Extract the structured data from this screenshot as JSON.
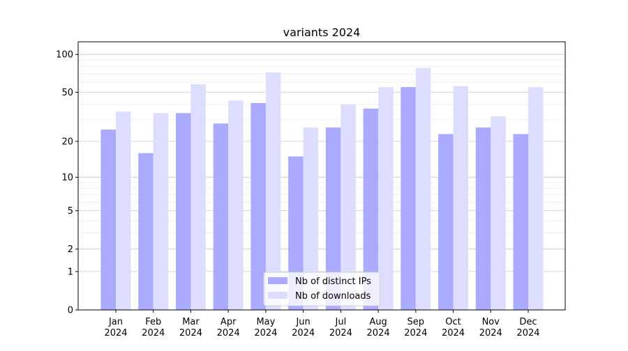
{
  "chart_data": {
    "type": "bar",
    "title": "variants 2024",
    "xlabel": "",
    "ylabel": "",
    "yscale": "log10(1+y)",
    "ylim": [
      0,
      126
    ],
    "yticks": [
      0,
      1,
      2,
      5,
      10,
      20,
      50,
      100
    ],
    "ytick_labels": [
      "0",
      "1",
      "2",
      "5",
      "10",
      "20",
      "50",
      "100"
    ],
    "minor_grid": [
      3,
      4,
      6,
      7,
      8,
      9,
      30,
      40,
      60,
      70,
      80,
      90
    ],
    "grid": true,
    "legend_position": "bottom-center",
    "categories": [
      [
        "Jan",
        "2024"
      ],
      [
        "Feb",
        "2024"
      ],
      [
        "Mar",
        "2024"
      ],
      [
        "Apr",
        "2024"
      ],
      [
        "May",
        "2024"
      ],
      [
        "Jun",
        "2024"
      ],
      [
        "Jul",
        "2024"
      ],
      [
        "Aug",
        "2024"
      ],
      [
        "Sep",
        "2024"
      ],
      [
        "Oct",
        "2024"
      ],
      [
        "Nov",
        "2024"
      ],
      [
        "Dec",
        "2024"
      ]
    ],
    "series": [
      {
        "name": "Nb of distinct IPs",
        "color": "#aaaaff",
        "values": [
          25,
          16,
          34,
          28,
          41,
          15,
          26,
          37,
          55,
          23,
          26,
          23
        ]
      },
      {
        "name": "Nb of downloads",
        "color": "#ddddff",
        "values": [
          35,
          34,
          58,
          43,
          72,
          26,
          40,
          55,
          78,
          56,
          32,
          55
        ]
      }
    ]
  }
}
